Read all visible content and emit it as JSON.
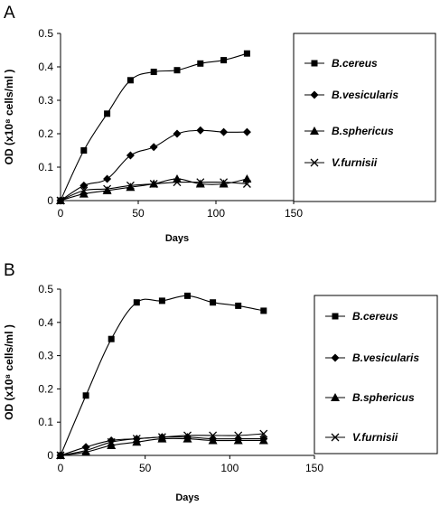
{
  "chart_data": [
    {
      "panel_label": "A",
      "type": "line",
      "xlabel": "Days",
      "ylabel": "OD  (x10⁸ cells/ml )",
      "xlim": [
        0,
        150
      ],
      "ylim": [
        0,
        0.5
      ],
      "xticks": [
        "0",
        "50",
        "100",
        "150"
      ],
      "yticks": [
        "0",
        "0.1",
        "0.2",
        "0.3",
        "0.4",
        "0.5"
      ],
      "legend_position": "right",
      "grid": false,
      "series": [
        {
          "name": "B.cereus",
          "marker": "square",
          "x": [
            0,
            15,
            30,
            45,
            60,
            75,
            90,
            105,
            120
          ],
          "y": [
            0,
            0.15,
            0.26,
            0.36,
            0.385,
            0.39,
            0.41,
            0.42,
            0.44
          ]
        },
        {
          "name": "B.vesicularis",
          "marker": "diamond",
          "x": [
            0,
            15,
            30,
            45,
            60,
            75,
            90,
            105,
            120
          ],
          "y": [
            0,
            0.045,
            0.065,
            0.135,
            0.16,
            0.2,
            0.21,
            0.205,
            0.205
          ]
        },
        {
          "name": "B.sphericus",
          "marker": "triangle",
          "x": [
            0,
            15,
            30,
            45,
            60,
            75,
            90,
            105,
            120
          ],
          "y": [
            0,
            0.02,
            0.03,
            0.04,
            0.05,
            0.065,
            0.05,
            0.05,
            0.065
          ]
        },
        {
          "name": "V.furnisii",
          "marker": "x",
          "x": [
            0,
            15,
            30,
            45,
            60,
            75,
            90,
            105,
            120
          ],
          "y": [
            0,
            0.03,
            0.035,
            0.045,
            0.05,
            0.055,
            0.055,
            0.055,
            0.05
          ]
        }
      ]
    },
    {
      "panel_label": "B",
      "type": "line",
      "xlabel": "Days",
      "ylabel": "OD  (x10⁸ cells/ml )",
      "xlim": [
        0,
        150
      ],
      "ylim": [
        0,
        0.5
      ],
      "xticks": [
        "0",
        "50",
        "100",
        "150"
      ],
      "yticks": [
        "0",
        "0.1",
        "0.2",
        "0.3",
        "0.4",
        "0.5"
      ],
      "legend_position": "right",
      "grid": false,
      "series": [
        {
          "name": "B.cereus",
          "marker": "square",
          "x": [
            0,
            15,
            30,
            45,
            60,
            75,
            90,
            105,
            120
          ],
          "y": [
            0,
            0.18,
            0.35,
            0.46,
            0.465,
            0.48,
            0.46,
            0.45,
            0.435
          ]
        },
        {
          "name": "B.vesicularis",
          "marker": "diamond",
          "x": [
            0,
            15,
            30,
            45,
            60,
            75,
            90,
            105,
            120
          ],
          "y": [
            0,
            0.025,
            0.045,
            0.05,
            0.055,
            0.055,
            0.05,
            0.05,
            0.05
          ]
        },
        {
          "name": "B.sphericus",
          "marker": "triangle",
          "x": [
            0,
            15,
            30,
            45,
            60,
            75,
            90,
            105,
            120
          ],
          "y": [
            0,
            0.01,
            0.03,
            0.04,
            0.05,
            0.05,
            0.045,
            0.045,
            0.045
          ]
        },
        {
          "name": "V.furnisii",
          "marker": "x",
          "x": [
            0,
            15,
            30,
            45,
            60,
            75,
            90,
            105,
            120
          ],
          "y": [
            0,
            0.015,
            0.04,
            0.05,
            0.055,
            0.06,
            0.06,
            0.06,
            0.065
          ]
        }
      ]
    }
  ]
}
